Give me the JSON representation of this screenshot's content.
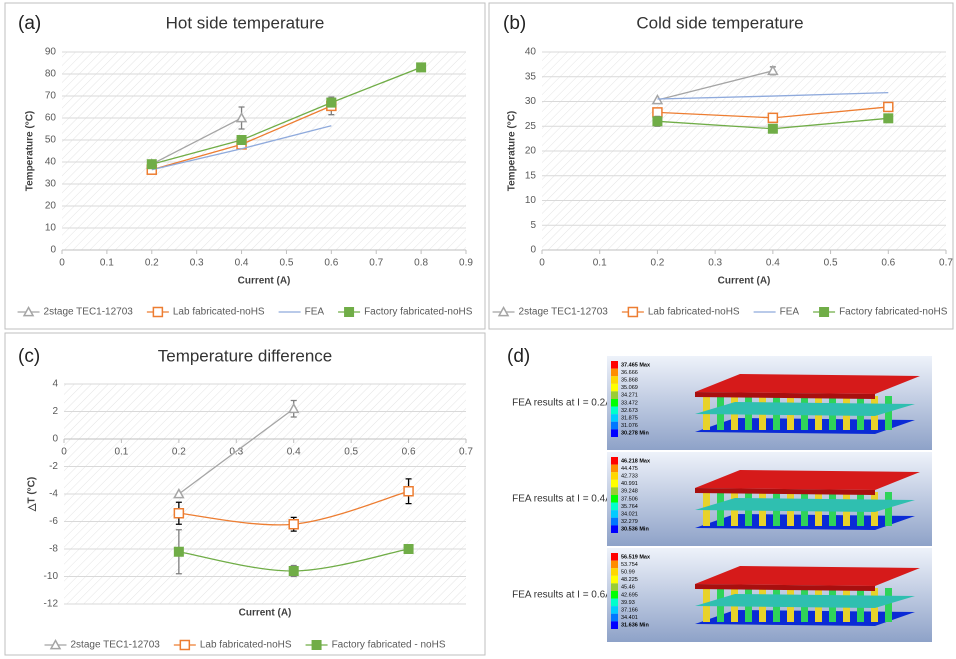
{
  "chart_data": [
    {
      "type": "line",
      "panel_label": "(a)",
      "title": "Hot side temperature",
      "x_label": "Current (A)",
      "y_label": "Temperature (°C)",
      "x": [
        0.2,
        0.4,
        0.6,
        0.8
      ],
      "series": [
        {
          "name": "2stage TEC1-12703",
          "color": "#a5a5a5",
          "marker": "triangle-open",
          "values": [
            39,
            60,
            null,
            null
          ],
          "errors": [
            null,
            5,
            null,
            null
          ]
        },
        {
          "name": "Lab fabricated-noHS",
          "color": "#ed7d31",
          "marker": "square-open",
          "values": [
            36.5,
            48,
            65.5,
            null
          ],
          "errors": [
            null,
            null,
            4,
            null
          ]
        },
        {
          "name": "FEA",
          "color": "#8faadc",
          "marker": "none",
          "values": [
            36.5,
            46,
            56.5,
            null
          ]
        },
        {
          "name": "Factory fabricated-noHS",
          "color": "#70ad47",
          "marker": "square",
          "values": [
            39,
            50,
            67,
            83
          ],
          "errors": [
            null,
            null,
            null,
            null
          ]
        }
      ],
      "xlim": [
        0,
        0.9
      ],
      "xticks": [
        0,
        0.1,
        0.2,
        0.3,
        0.4,
        0.5,
        0.6,
        0.7,
        0.8,
        0.9
      ],
      "ylim": [
        0,
        90
      ],
      "yticks": [
        0,
        10,
        20,
        30,
        40,
        50,
        60,
        70,
        80,
        90
      ],
      "grid": true,
      "smooth": false
    },
    {
      "type": "line",
      "panel_label": "(b)",
      "title": "Cold side temperature",
      "x_label": "Current (A)",
      "y_label": "Temperature (°C)",
      "x": [
        0.2,
        0.4,
        0.6
      ],
      "series": [
        {
          "name": "2stage TEC1-12703",
          "color": "#a5a5a5",
          "marker": "triangle-open",
          "values": [
            30.3,
            36.2,
            null
          ],
          "errors": [
            null,
            0.8,
            null
          ]
        },
        {
          "name": "Lab fabricated-noHS",
          "color": "#ed7d31",
          "marker": "square-open",
          "values": [
            27.8,
            26.7,
            28.9
          ],
          "errors": [
            null,
            null,
            null
          ]
        },
        {
          "name": "FEA",
          "color": "#8faadc",
          "marker": "none",
          "values": [
            30.5,
            31.1,
            31.8
          ]
        },
        {
          "name": "Factory fabricated-noHS",
          "color": "#70ad47",
          "marker": "square",
          "values": [
            26,
            24.5,
            26.6
          ],
          "errors": [
            1,
            0.6,
            null
          ]
        }
      ],
      "xlim": [
        0,
        0.7
      ],
      "xticks": [
        0,
        0.1,
        0.2,
        0.3,
        0.4,
        0.5,
        0.6,
        0.7
      ],
      "ylim": [
        0,
        40
      ],
      "yticks": [
        0,
        5,
        10,
        15,
        20,
        25,
        30,
        35,
        40
      ],
      "grid": true,
      "smooth": false
    },
    {
      "type": "line",
      "panel_label": "(c)",
      "title": "Temperature difference",
      "x_label": "Current (A)",
      "y_label": "△T (°C)",
      "x": [
        0.2,
        0.4,
        0.6
      ],
      "series": [
        {
          "name": "2stage TEC1-12703",
          "color": "#a5a5a5",
          "marker": "triangle-open",
          "values": [
            -4,
            2.2,
            null
          ],
          "errors": [
            null,
            0.6,
            null
          ]
        },
        {
          "name": "Lab fabricated-noHS",
          "color": "#ed7d31",
          "marker": "square-open",
          "values": [
            -5.4,
            -6.2,
            -3.8
          ],
          "errors": [
            0.8,
            0.5,
            0.9
          ]
        },
        {
          "name": "Factory fabricated - noHS",
          "color": "#70ad47",
          "marker": "square",
          "values": [
            -8.2,
            -9.6,
            -8
          ],
          "errors": [
            1.6,
            0.4,
            null
          ]
        }
      ],
      "xlim": [
        0,
        0.7
      ],
      "xticks": [
        0,
        0.1,
        0.2,
        0.3,
        0.4,
        0.5,
        0.6,
        0.7
      ],
      "ylim": [
        -12,
        4
      ],
      "yticks": [
        -12,
        -10,
        -8,
        -6,
        -4,
        -2,
        0,
        2,
        4
      ],
      "grid": true,
      "smooth": true
    }
  ],
  "panel_d": {
    "panel_label": "(d)",
    "results": [
      {
        "label": "FEA results at I = 0.2A",
        "legend": [
          "37.465 Max",
          "36.666",
          "35.868",
          "35.069",
          "34.271",
          "33.472",
          "32.673",
          "31.875",
          "31.076",
          "30.278 Min"
        ]
      },
      {
        "label": "FEA results at I = 0.4A",
        "legend": [
          "46.218 Max",
          "44.475",
          "42.733",
          "40.991",
          "39.248",
          "37.506",
          "35.764",
          "34.021",
          "32.279",
          "30.536 Min"
        ]
      },
      {
        "label": "FEA results at I = 0.6A",
        "legend": [
          "56.519 Max",
          "53.754",
          "50.99",
          "48.225",
          "45.46",
          "42.695",
          "39.93",
          "37.166",
          "34.401",
          "31.636 Min"
        ]
      }
    ]
  }
}
